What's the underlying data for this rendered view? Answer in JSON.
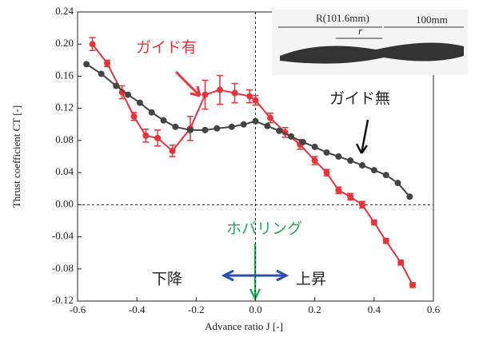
{
  "chart_data": {
    "type": "line",
    "x_label": "Advance ratio J [-]",
    "y_label": "Thrust coefficient CT [-]",
    "xlim": [
      -0.6,
      0.6
    ],
    "xticks": [
      -0.6,
      -0.4,
      -0.2,
      {
        "value": 0,
        "label": "0.0"
      },
      0.2,
      0.4,
      0.6
    ],
    "ylim": [
      -0.12,
      0.24
    ],
    "yticks": [
      -0.12,
      -0.08,
      -0.04,
      {
        "value": 0,
        "label": "0.00"
      },
      0.04,
      0.08,
      0.12,
      0.16,
      {
        "value": 0.2,
        "label": "0.20"
      },
      0.24
    ],
    "series": [
      {
        "name": "ガイド有",
        "color": "#e8333a",
        "x": [
          -0.55,
          -0.5,
          -0.45,
          -0.41,
          -0.37,
          -0.33,
          -0.28,
          -0.22,
          -0.17,
          -0.12,
          -0.07,
          -0.02,
          0.0,
          0.05,
          0.1,
          0.15,
          0.2,
          0.24,
          0.28,
          0.32,
          0.36,
          0.4,
          0.44,
          0.49,
          0.53
        ],
        "values": [
          0.2,
          0.176,
          0.14,
          0.11,
          0.086,
          0.083,
          0.067,
          0.095,
          0.137,
          0.143,
          0.139,
          0.135,
          0.13,
          0.108,
          0.09,
          0.075,
          0.055,
          0.04,
          0.018,
          0.01,
          0.0,
          -0.022,
          -0.045,
          -0.072,
          -0.1
        ],
        "errors": [
          0.008,
          0.004,
          0.008,
          0.005,
          0.008,
          0.01,
          0.007,
          0.015,
          0.018,
          0.018,
          0.012,
          0.008,
          0.006,
          0.006,
          0.006,
          0.006,
          0.005,
          0.004,
          0.004,
          0.004,
          0.004,
          0.003,
          0.003,
          0.003,
          0.003
        ]
      },
      {
        "name": "ガイド無",
        "color": "#444444",
        "x": [
          -0.57,
          -0.52,
          -0.47,
          -0.43,
          -0.39,
          -0.35,
          -0.31,
          -0.27,
          -0.22,
          -0.17,
          -0.13,
          -0.08,
          -0.04,
          0.0,
          0.04,
          0.08,
          0.12,
          0.16,
          0.2,
          0.24,
          0.28,
          0.32,
          0.36,
          0.4,
          0.44,
          0.48,
          0.52
        ],
        "values": [
          0.175,
          0.163,
          0.148,
          0.137,
          0.127,
          0.115,
          0.105,
          0.097,
          0.093,
          0.093,
          0.095,
          0.097,
          0.1,
          0.104,
          0.098,
          0.092,
          0.085,
          0.078,
          0.072,
          0.065,
          0.06,
          0.055,
          0.049,
          0.043,
          0.037,
          0.027,
          0.01
        ]
      }
    ],
    "annotations": [
      "ホバリング",
      "下降",
      "上昇"
    ],
    "inset_labels": [
      "R(101.6mm)",
      "r",
      "100mm"
    ]
  }
}
